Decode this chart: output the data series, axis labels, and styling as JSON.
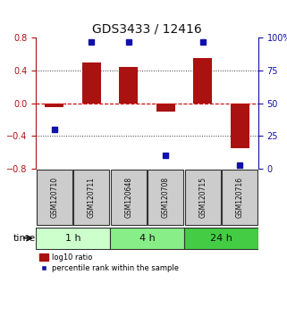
{
  "title": "GDS3433 / 12416",
  "samples": [
    "GSM120710",
    "GSM120711",
    "GSM120648",
    "GSM120708",
    "GSM120715",
    "GSM120716"
  ],
  "log10_ratio": [
    -0.05,
    0.5,
    0.45,
    -0.1,
    0.55,
    -0.55
  ],
  "percentile_rank": [
    30,
    97,
    97,
    10,
    97,
    3
  ],
  "ylim_left": [
    -0.8,
    0.8
  ],
  "ylim_right": [
    0,
    100
  ],
  "yticks_left": [
    -0.8,
    -0.4,
    0,
    0.4,
    0.8
  ],
  "yticks_right": [
    0,
    25,
    50,
    75,
    100
  ],
  "ytick_labels_right": [
    "0",
    "25",
    "50",
    "75",
    "100%"
  ],
  "bar_color": "#aa1111",
  "square_color": "#1111aa",
  "hline_color": "#cc0000",
  "dotted_line_color": "#333333",
  "time_groups": [
    {
      "label": "1 h",
      "start": 0,
      "end": 2,
      "color": "#ccffcc"
    },
    {
      "label": "4 h",
      "start": 2,
      "end": 4,
      "color": "#88ee88"
    },
    {
      "label": "24 h",
      "start": 4,
      "end": 6,
      "color": "#44cc44"
    }
  ],
  "sample_box_color": "#cccccc",
  "sample_box_edge_color": "#333333",
  "legend_bar_label": "log10 ratio",
  "legend_square_label": "percentile rank within the sample",
  "time_arrow_label": "time",
  "bg_color": "#ffffff"
}
